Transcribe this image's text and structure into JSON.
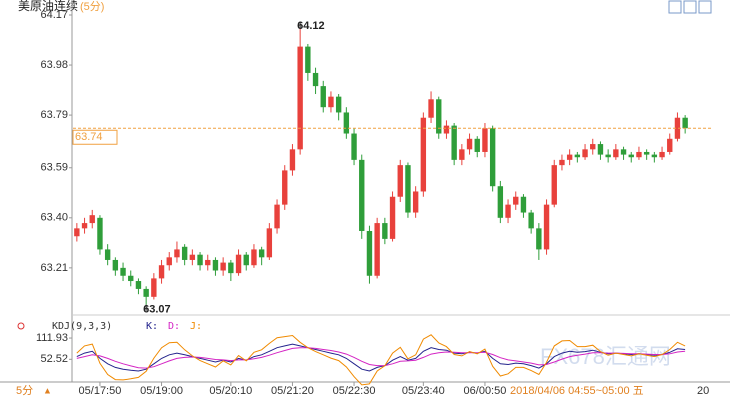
{
  "chart_data": [
    {
      "type": "candlestick",
      "title": "美原油连续",
      "subtitle": "(5分)",
      "up_color": "#e8413c",
      "down_color": "#2f9e3a",
      "price_line_color": "#f0a040",
      "ylim": [
        63.05,
        64.17
      ],
      "yticks": [
        64.17,
        63.98,
        63.79,
        63.59,
        {
          "value": 63.4,
          "label": "63.40"
        },
        63.21
      ],
      "grid": false,
      "categories": [
        null,
        null,
        null,
        "05/17:50",
        null,
        null,
        null,
        null,
        null,
        null,
        null,
        "05/19:00",
        null,
        null,
        null,
        null,
        null,
        null,
        null,
        null,
        "05/20:10",
        null,
        null,
        null,
        null,
        null,
        null,
        null,
        "05/21:20",
        null,
        null,
        null,
        null,
        null,
        null,
        null,
        "05/22:30",
        null,
        null,
        null,
        null,
        null,
        null,
        null,
        null,
        "05/23:40",
        null,
        null,
        null,
        null,
        null,
        null,
        null,
        "06/00:50",
        null,
        null,
        null,
        null,
        null,
        null,
        null,
        null,
        null,
        null,
        null,
        null,
        null,
        null,
        null,
        null,
        null,
        null,
        null,
        null,
        null,
        null,
        null,
        null,
        null,
        null
      ],
      "ohlc": [
        [
          63.33,
          63.38,
          63.31,
          63.36
        ],
        [
          63.36,
          63.4,
          63.34,
          63.38
        ],
        [
          63.38,
          63.43,
          63.36,
          63.41
        ],
        [
          63.4,
          63.41,
          63.26,
          63.28
        ],
        [
          63.28,
          63.3,
          63.22,
          63.24
        ],
        [
          63.24,
          63.25,
          63.18,
          63.2
        ],
        [
          63.21,
          63.23,
          63.16,
          63.18
        ],
        [
          63.18,
          63.2,
          63.14,
          63.16
        ],
        [
          63.16,
          63.17,
          63.11,
          63.13
        ],
        [
          63.13,
          63.14,
          63.07,
          63.1
        ],
        [
          63.1,
          63.19,
          63.09,
          63.17
        ],
        [
          63.17,
          63.24,
          63.15,
          63.22
        ],
        [
          63.22,
          63.27,
          63.2,
          63.25
        ],
        [
          63.25,
          63.31,
          63.23,
          63.28
        ],
        [
          63.29,
          63.3,
          63.22,
          63.24
        ],
        [
          63.24,
          63.28,
          63.22,
          63.26
        ],
        [
          63.26,
          63.27,
          63.2,
          63.22
        ],
        [
          63.22,
          63.26,
          63.2,
          63.24
        ],
        [
          63.24,
          63.25,
          63.18,
          63.2
        ],
        [
          63.2,
          63.25,
          63.18,
          63.23
        ],
        [
          63.23,
          63.24,
          63.16,
          63.19
        ],
        [
          63.19,
          63.28,
          63.18,
          63.26
        ],
        [
          63.26,
          63.27,
          63.2,
          63.22
        ],
        [
          63.22,
          63.3,
          63.21,
          63.28
        ],
        [
          63.28,
          63.29,
          63.22,
          63.25
        ],
        [
          63.25,
          63.38,
          63.24,
          63.36
        ],
        [
          63.36,
          63.47,
          63.34,
          63.45
        ],
        [
          63.45,
          63.6,
          63.43,
          63.58
        ],
        [
          63.58,
          63.68,
          63.56,
          63.66
        ],
        [
          63.66,
          64.12,
          63.64,
          64.05
        ],
        [
          64.05,
          64.06,
          63.92,
          63.95
        ],
        [
          63.95,
          63.97,
          63.87,
          63.9
        ],
        [
          63.9,
          63.92,
          63.8,
          63.82
        ],
        [
          63.82,
          63.88,
          63.8,
          63.86
        ],
        [
          63.86,
          63.87,
          63.77,
          63.8
        ],
        [
          63.8,
          63.82,
          63.7,
          63.72
        ],
        [
          63.72,
          63.74,
          63.6,
          63.62
        ],
        [
          63.62,
          63.64,
          63.32,
          63.35
        ],
        [
          63.35,
          63.37,
          63.15,
          63.18
        ],
        [
          63.18,
          63.4,
          63.17,
          63.38
        ],
        [
          63.38,
          63.4,
          63.3,
          63.32
        ],
        [
          63.32,
          63.5,
          63.31,
          63.48
        ],
        [
          63.48,
          63.62,
          63.46,
          63.6
        ],
        [
          63.6,
          63.61,
          63.4,
          63.42
        ],
        [
          63.42,
          63.52,
          63.4,
          63.5
        ],
        [
          63.5,
          63.8,
          63.48,
          63.78
        ],
        [
          63.78,
          63.88,
          63.76,
          63.85
        ],
        [
          63.85,
          63.86,
          63.7,
          63.72
        ],
        [
          63.72,
          63.77,
          63.7,
          63.75
        ],
        [
          63.75,
          63.76,
          63.6,
          63.62
        ],
        [
          63.62,
          63.68,
          63.6,
          63.66
        ],
        [
          63.66,
          63.72,
          63.64,
          63.7
        ],
        [
          63.7,
          63.71,
          63.63,
          63.65
        ],
        [
          63.65,
          63.76,
          63.63,
          63.74
        ],
        [
          63.74,
          63.75,
          63.5,
          63.52
        ],
        [
          63.52,
          63.54,
          63.38,
          63.4
        ],
        [
          63.4,
          63.47,
          63.38,
          63.45
        ],
        [
          63.45,
          63.5,
          63.43,
          63.48
        ],
        [
          63.48,
          63.49,
          63.4,
          63.42
        ],
        [
          63.42,
          63.43,
          63.34,
          63.36
        ],
        [
          63.36,
          63.38,
          63.24,
          63.28
        ],
        [
          63.28,
          63.47,
          63.26,
          63.45
        ],
        [
          63.45,
          63.62,
          63.44,
          63.6
        ],
        [
          63.6,
          63.64,
          63.58,
          63.62
        ],
        [
          63.62,
          63.66,
          63.6,
          63.64
        ],
        [
          63.64,
          63.65,
          63.61,
          63.63
        ],
        [
          63.63,
          63.68,
          63.62,
          63.66
        ],
        [
          63.66,
          63.7,
          63.64,
          63.68
        ],
        [
          63.68,
          63.69,
          63.62,
          63.64
        ],
        [
          63.64,
          63.66,
          63.61,
          63.63
        ],
        [
          63.63,
          63.68,
          63.62,
          63.66
        ],
        [
          63.66,
          63.67,
          63.62,
          63.64
        ],
        [
          63.64,
          63.65,
          63.61,
          63.63
        ],
        [
          63.63,
          63.67,
          63.62,
          63.65
        ],
        [
          63.65,
          63.66,
          63.62,
          63.64
        ],
        [
          63.64,
          63.65,
          63.61,
          63.63
        ],
        [
          63.63,
          63.67,
          63.62,
          63.65
        ],
        [
          63.65,
          63.72,
          63.64,
          63.7
        ],
        [
          63.7,
          63.8,
          63.69,
          63.78
        ],
        [
          63.78,
          63.79,
          63.72,
          63.74
        ]
      ],
      "cursor_label": "2018/04/06 04:55~05:00 五",
      "edge_label": "20",
      "period": "5分",
      "watermark": "FX678汇通网"
    },
    {
      "type": "line",
      "title": "KDJ(9,3,3)",
      "ylim": [
        -22,
        126
      ],
      "yticks": [
        111.93,
        52.52
      ],
      "series": [
        {
          "name": "K:",
          "color": "#23238c",
          "values": [
            60,
            70,
            75,
            55,
            40,
            30,
            25,
            22,
            20,
            25,
            40,
            55,
            65,
            70,
            65,
            60,
            55,
            50,
            45,
            50,
            45,
            55,
            50,
            60,
            65,
            75,
            85,
            90,
            95,
            90,
            85,
            80,
            75,
            70,
            65,
            55,
            40,
            25,
            20,
            30,
            35,
            50,
            60,
            50,
            55,
            75,
            85,
            80,
            78,
            70,
            68,
            72,
            70,
            75,
            55,
            40,
            38,
            42,
            40,
            35,
            28,
            40,
            60,
            70,
            75,
            72,
            74,
            78,
            72,
            68,
            70,
            68,
            66,
            68,
            66,
            64,
            66,
            72,
            82,
            80
          ]
        },
        {
          "name": "D:",
          "color": "#d424c4",
          "values": [
            55,
            60,
            65,
            62,
            55,
            47,
            40,
            34,
            29,
            28,
            32,
            40,
            48,
            55,
            58,
            59,
            58,
            55,
            52,
            51,
            49,
            51,
            51,
            54,
            58,
            64,
            71,
            77,
            83,
            85,
            85,
            83,
            80,
            77,
            73,
            67,
            58,
            47,
            38,
            35,
            35,
            40,
            47,
            48,
            50,
            58,
            67,
            71,
            73,
            72,
            71,
            71,
            71,
            72,
            66,
            57,
            51,
            48,
            45,
            42,
            37,
            38,
            45,
            53,
            60,
            64,
            67,
            71,
            71,
            70,
            70,
            69,
            68,
            68,
            67,
            66,
            66,
            68,
            73,
            75
          ]
        },
        {
          "name": "J:",
          "color": "#f08a00",
          "values": [
            70,
            90,
            95,
            41,
            10,
            -4,
            -5,
            -2,
            2,
            19,
            56,
            85,
            99,
            100,
            79,
            62,
            49,
            40,
            31,
            48,
            37,
            63,
            48,
            72,
            79,
            97,
            113,
            116,
            119,
            100,
            85,
            74,
            65,
            56,
            49,
            31,
            4,
            -19,
            -16,
            20,
            35,
            70,
            86,
            54,
            65,
            109,
            121,
            98,
            88,
            66,
            62,
            74,
            68,
            81,
            33,
            6,
            12,
            30,
            30,
            21,
            10,
            44,
            90,
            104,
            105,
            88,
            88,
            92,
            74,
            64,
            70,
            66,
            62,
            68,
            64,
            60,
            66,
            80,
            100,
            90
          ]
        }
      ]
    }
  ]
}
